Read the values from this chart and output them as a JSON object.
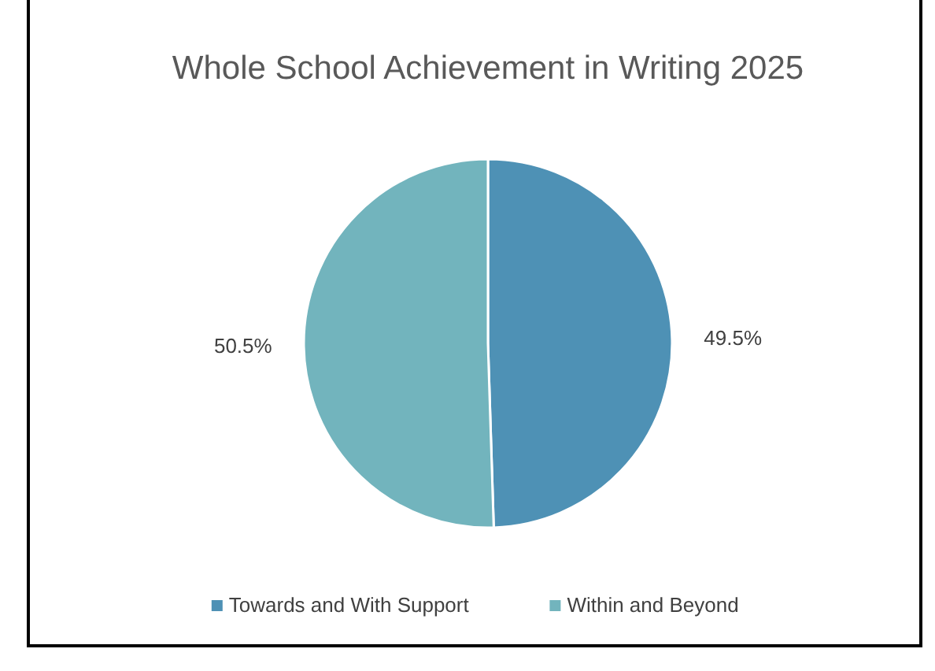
{
  "chart_data": {
    "type": "pie",
    "title": "Whole School Achievement in Writing 2025",
    "categories": [
      "Towards and With Support",
      "Within and Beyond"
    ],
    "values": [
      49.5,
      50.5
    ],
    "value_labels": [
      "49.5%",
      "50.5%"
    ],
    "colors": [
      "#4e91b5",
      "#72b4bd"
    ],
    "legend": "bottom"
  }
}
